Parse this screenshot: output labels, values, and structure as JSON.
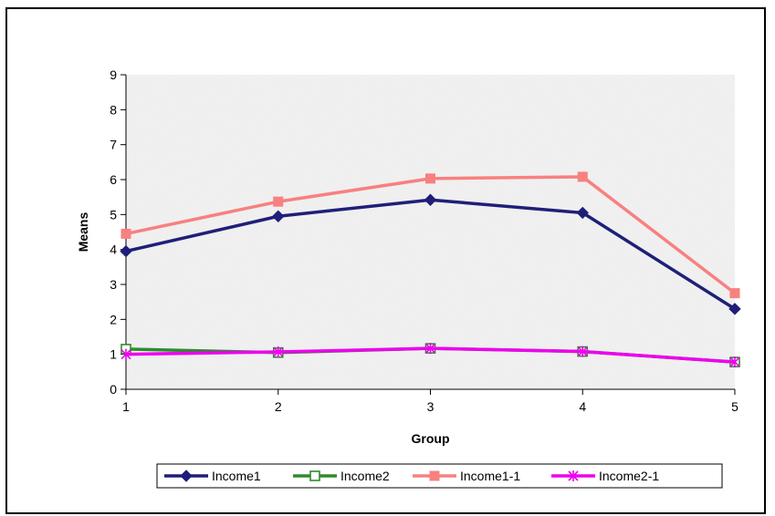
{
  "chart_data": {
    "type": "line",
    "title": "",
    "xlabel": "Group",
    "ylabel": "Means",
    "x": [
      1,
      2,
      3,
      4,
      5
    ],
    "x_tick_labels": [
      "1",
      "2",
      "3",
      "4",
      "5"
    ],
    "y_ticks": [
      0,
      1,
      2,
      3,
      4,
      5,
      6,
      7,
      8,
      9
    ],
    "ylim": [
      0,
      9
    ],
    "xlim": [
      1,
      5
    ],
    "grid": false,
    "legend_position": "bottom",
    "plot_background": "#eeeeee",
    "series": [
      {
        "name": "Income1",
        "values": [
          3.95,
          4.95,
          5.42,
          5.05,
          2.3
        ],
        "color": "#1f1f7a",
        "marker": "diamond"
      },
      {
        "name": "Income2",
        "values": [
          1.15,
          1.05,
          1.17,
          1.08,
          0.78
        ],
        "color": "#2e8b2e",
        "marker": "square-open"
      },
      {
        "name": "Income1-1",
        "values": [
          4.45,
          5.37,
          6.03,
          6.08,
          2.75
        ],
        "color": "#f88080",
        "marker": "square"
      },
      {
        "name": "Income2-1",
        "values": [
          1.0,
          1.07,
          1.17,
          1.08,
          0.78
        ],
        "color": "#ee00ee",
        "marker": "asterisk"
      }
    ]
  }
}
